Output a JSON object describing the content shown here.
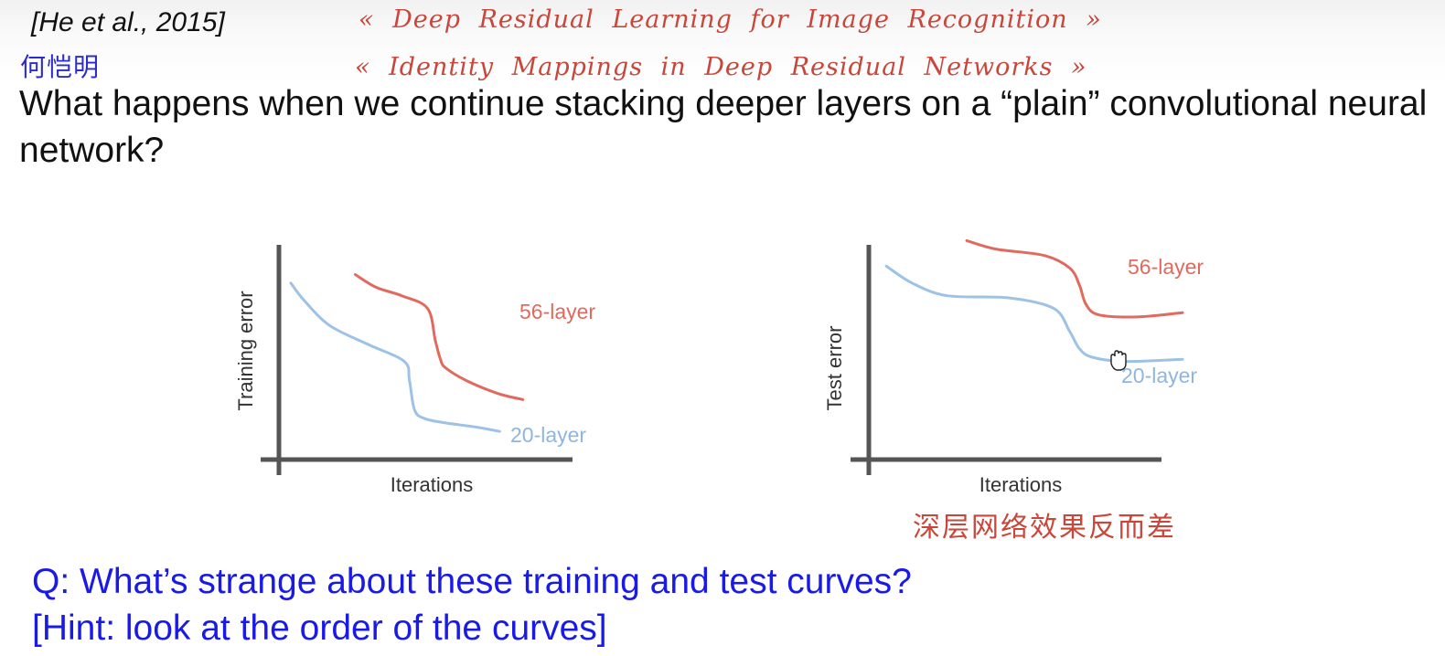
{
  "slide": {
    "citation": "[He et al., 2015]",
    "question": "What happens when we continue stacking deeper layers on a “plain” convolutional neural network?",
    "discussion_question": "Q: What’s strange about these training and test curves?",
    "hint": "[Hint: look at the order of the curves]"
  },
  "annotations": {
    "author": "何恺明",
    "paper_1": "« Deep Residual Learning for Image Recognition »",
    "paper_2": "« Identity Mappings in Deep Residual Networks »",
    "note": "深层网络效果反而差"
  },
  "colors": {
    "series_56_layer": "#e06a5e",
    "series_20_layer": "#9ec2e6",
    "axis": "#555555",
    "question_text": "#1a1ae6",
    "handwriting": "#c8463a"
  },
  "chart_data": [
    {
      "type": "line",
      "title": "",
      "xlabel": "Iterations",
      "ylabel": "Training error",
      "grid": false,
      "series": [
        {
          "name": "56-layer",
          "color": "#e06a5e",
          "x": [
            0.25,
            0.33,
            0.43,
            0.53,
            0.56,
            0.58,
            0.6,
            0.68,
            0.8,
            0.9
          ],
          "y": [
            0.86,
            0.8,
            0.76,
            0.7,
            0.55,
            0.46,
            0.42,
            0.36,
            0.3,
            0.27
          ]
        },
        {
          "name": "20-layer",
          "color": "#9ec2e6",
          "x": [
            0.0,
            0.05,
            0.15,
            0.3,
            0.44,
            0.46,
            0.48,
            0.52,
            0.6,
            0.72,
            0.81
          ],
          "y": [
            0.82,
            0.74,
            0.62,
            0.53,
            0.45,
            0.36,
            0.22,
            0.18,
            0.16,
            0.14,
            0.12
          ]
        }
      ]
    },
    {
      "type": "line",
      "title": "",
      "xlabel": "Iterations",
      "ylabel": "Test error",
      "grid": false,
      "series": [
        {
          "name": "56-layer",
          "color": "#e06a5e",
          "x": [
            0.31,
            0.4,
            0.55,
            0.63,
            0.66,
            0.68,
            0.72,
            0.84,
            0.98
          ],
          "y": [
            1.02,
            0.98,
            0.95,
            0.89,
            0.81,
            0.72,
            0.67,
            0.66,
            0.68
          ]
        },
        {
          "name": "20-layer",
          "color": "#9ec2e6",
          "x": [
            0.06,
            0.14,
            0.25,
            0.44,
            0.58,
            0.63,
            0.66,
            0.7,
            0.8,
            0.98
          ],
          "y": [
            0.9,
            0.82,
            0.76,
            0.75,
            0.7,
            0.59,
            0.51,
            0.47,
            0.45,
            0.46
          ]
        }
      ]
    }
  ]
}
